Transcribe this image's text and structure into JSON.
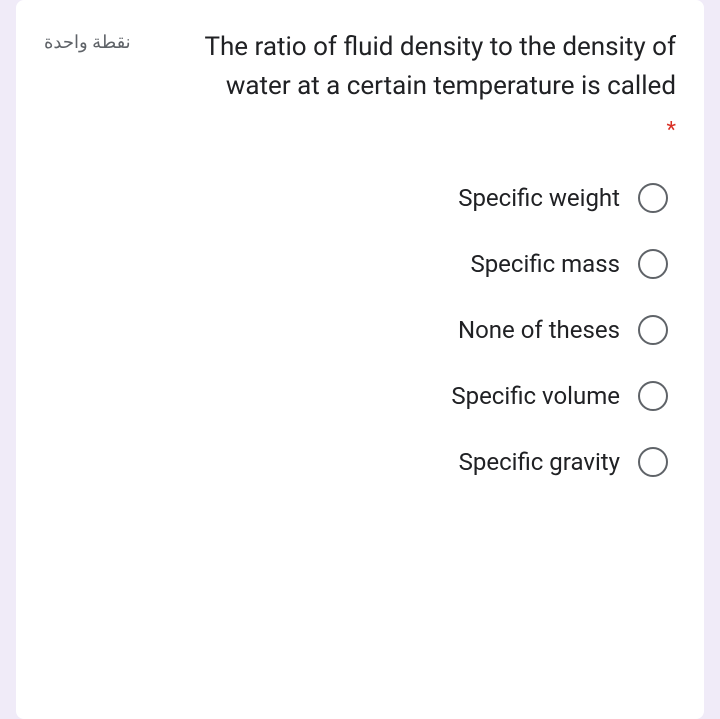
{
  "question": {
    "points_label": "نقطة واحدة",
    "text": "The ratio of fluid density to the density of water at a certain temperature is called",
    "required_marker": "*",
    "options": [
      {
        "label": "Specific weight"
      },
      {
        "label": "Specific mass"
      },
      {
        "label": "None of theses"
      },
      {
        "label": "Specific volume"
      },
      {
        "label": "Specific gravity"
      }
    ]
  },
  "colors": {
    "background": "#f0ebf8",
    "card_background": "#ffffff",
    "text_primary": "#202124",
    "text_secondary": "#5f6368",
    "required": "#d93025",
    "radio_border": "#5f6368"
  }
}
